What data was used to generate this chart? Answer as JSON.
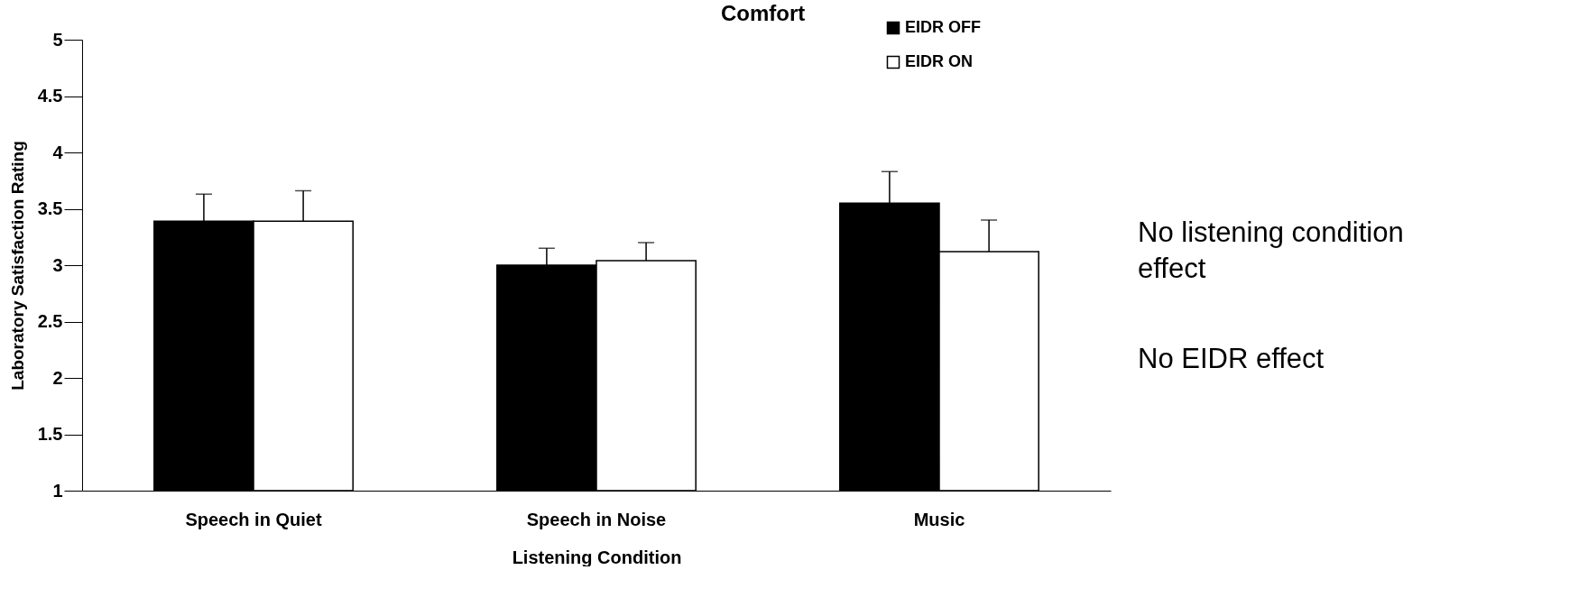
{
  "chart_data": {
    "type": "bar",
    "title": "Comfort",
    "xlabel": "Listening Condition",
    "ylabel": "Laboratory Satisfaction Rating",
    "categories": [
      "Speech in Quiet",
      "Speech in Noise",
      "Music"
    ],
    "series": [
      {
        "name": "EIDR OFF",
        "color": "#000000",
        "values": [
          3.39,
          3.0,
          3.55
        ],
        "errors": [
          [
            3.39,
            3.63
          ],
          [
            3.0,
            3.15
          ],
          [
            3.55,
            3.83
          ]
        ]
      },
      {
        "name": "EIDR ON",
        "color": "#ffffff",
        "values": [
          3.39,
          3.04,
          3.12
        ],
        "errors": [
          [
            3.39,
            3.66
          ],
          [
            3.04,
            3.2
          ],
          [
            3.12,
            3.4
          ]
        ]
      }
    ],
    "ylim": [
      1,
      5
    ],
    "yticks": [
      1,
      1.5,
      2,
      2.5,
      3,
      3.5,
      4,
      4.5,
      5
    ],
    "grid": false,
    "legend": "top right",
    "annotations": [
      "No listening condition effect",
      "No EIDR effect"
    ]
  }
}
